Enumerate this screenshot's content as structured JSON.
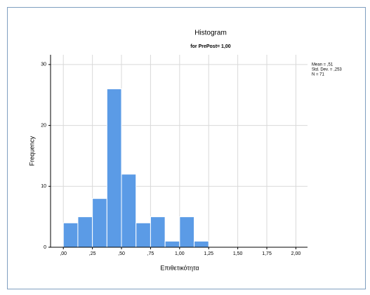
{
  "chart_data": {
    "type": "histogram",
    "title": "Histogram",
    "subtitle": "for PrePost= 1,00",
    "x_label": "Επιθετικότητα",
    "y_label": "Frequency",
    "annotations": [
      "Mean = ,51",
      "Std. Dev. = ,253",
      "N = 71"
    ],
    "bins": [
      0,
      0.125,
      0.25,
      0.375,
      0.5,
      0.625,
      0.75,
      0.875,
      1,
      1.125,
      1.25
    ],
    "values": [
      4,
      5,
      8,
      26,
      12,
      4,
      5,
      1,
      5,
      1
    ],
    "color": "#5b9be6",
    "xlim": [
      -0.11,
      2.1
    ],
    "ylim": [
      0,
      31.6
    ],
    "xticks": [
      {
        "value": 0,
        "label": ",00"
      },
      {
        "value": 0.25,
        "label": ",25"
      },
      {
        "value": 0.5,
        "label": ",50"
      },
      {
        "value": 0.75,
        "label": ",75"
      },
      {
        "value": 1,
        "label": "1,00"
      },
      {
        "value": 1.25,
        "label": "1,25"
      },
      {
        "value": 1.5,
        "label": "1,50"
      },
      {
        "value": 1.75,
        "label": "1,75"
      },
      {
        "value": 2,
        "label": "2,00"
      }
    ],
    "yticks": [
      0,
      10,
      20,
      30
    ],
    "grid": true
  }
}
